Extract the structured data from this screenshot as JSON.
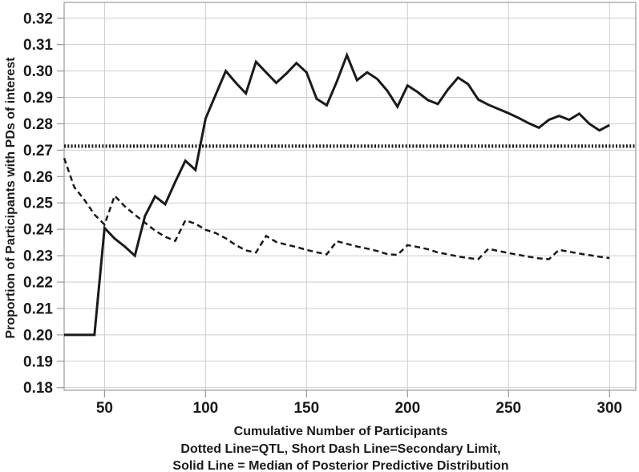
{
  "colors": {
    "line": "#1a1a1a",
    "grid": "#cdcdcd",
    "axis": "#999999",
    "text": "#1a1a1a",
    "background": "#ffffff"
  },
  "chart_data": {
    "type": "line",
    "title": "",
    "xlabel": "Cumulative Number of Participants",
    "ylabel": "Proportion of Participants with PDs of interest",
    "footnotes": [
      "Dotted Line=QTL, Short Dash Line=Secondary Limit,",
      "Solid Line = Median of Posterior Predictive Distribution"
    ],
    "grid": true,
    "legend_position": "none",
    "xlim": [
      30,
      313
    ],
    "ylim": [
      0.179,
      0.326
    ],
    "xticks": [
      50,
      100,
      150,
      200,
      250,
      300
    ],
    "xtick_labels": [
      "50",
      "100",
      "150",
      "200",
      "250",
      "300"
    ],
    "yticks": [
      0.18,
      0.19,
      0.2,
      0.21,
      0.22,
      0.23,
      0.24,
      0.25,
      0.26,
      0.27,
      0.28,
      0.29,
      0.3,
      0.31,
      0.32
    ],
    "ytick_labels": [
      "0.18",
      "0.19",
      "0.20",
      "0.21",
      "0.22",
      "0.23",
      "0.24",
      "0.25",
      "0.26",
      "0.27",
      "0.28",
      "0.29",
      "0.30",
      "0.31",
      "0.32"
    ],
    "series": [
      {
        "name": "QTL",
        "style": "dotted",
        "points": [
          [
            30,
            0.2715
          ],
          [
            313,
            0.2715
          ]
        ]
      },
      {
        "name": "Secondary Limit",
        "style": "short-dash",
        "points": [
          [
            30,
            0.267
          ],
          [
            35,
            0.256
          ],
          [
            40,
            0.2512
          ],
          [
            45,
            0.2456
          ],
          [
            50,
            0.2418
          ],
          [
            55,
            0.2527
          ],
          [
            60,
            0.2487
          ],
          [
            65,
            0.2455
          ],
          [
            70,
            0.2425
          ],
          [
            75,
            0.2395
          ],
          [
            80,
            0.2372
          ],
          [
            85,
            0.2356
          ],
          [
            90,
            0.2434
          ],
          [
            95,
            0.2421
          ],
          [
            100,
            0.2398
          ],
          [
            105,
            0.2386
          ],
          [
            110,
            0.2366
          ],
          [
            115,
            0.234
          ],
          [
            120,
            0.232
          ],
          [
            125,
            0.2312
          ],
          [
            130,
            0.2375
          ],
          [
            135,
            0.2352
          ],
          [
            140,
            0.2342
          ],
          [
            145,
            0.2333
          ],
          [
            150,
            0.2322
          ],
          [
            155,
            0.2313
          ],
          [
            160,
            0.2305
          ],
          [
            165,
            0.2355
          ],
          [
            170,
            0.2345
          ],
          [
            175,
            0.2335
          ],
          [
            180,
            0.2327
          ],
          [
            185,
            0.2318
          ],
          [
            190,
            0.2306
          ],
          [
            195,
            0.2303
          ],
          [
            200,
            0.234
          ],
          [
            205,
            0.2333
          ],
          [
            210,
            0.2325
          ],
          [
            215,
            0.2312
          ],
          [
            220,
            0.2305
          ],
          [
            225,
            0.2297
          ],
          [
            230,
            0.2291
          ],
          [
            235,
            0.2287
          ],
          [
            240,
            0.2326
          ],
          [
            245,
            0.2318
          ],
          [
            250,
            0.231
          ],
          [
            255,
            0.2303
          ],
          [
            260,
            0.2296
          ],
          [
            265,
            0.229
          ],
          [
            270,
            0.2287
          ],
          [
            275,
            0.2322
          ],
          [
            280,
            0.2315
          ],
          [
            285,
            0.2308
          ],
          [
            290,
            0.2302
          ],
          [
            295,
            0.2296
          ],
          [
            300,
            0.2291
          ]
        ]
      },
      {
        "name": "Median of Posterior Predictive Distribution",
        "style": "solid",
        "points": [
          [
            30,
            0.2
          ],
          [
            35,
            0.2
          ],
          [
            40,
            0.2
          ],
          [
            45,
            0.2
          ],
          [
            50,
            0.2405
          ],
          [
            55,
            0.2365
          ],
          [
            60,
            0.2335
          ],
          [
            65,
            0.23
          ],
          [
            70,
            0.245
          ],
          [
            75,
            0.2525
          ],
          [
            80,
            0.2495
          ],
          [
            85,
            0.258
          ],
          [
            90,
            0.266
          ],
          [
            95,
            0.2625
          ],
          [
            100,
            0.282
          ],
          [
            105,
            0.291
          ],
          [
            110,
            0.3
          ],
          [
            115,
            0.2955
          ],
          [
            120,
            0.2915
          ],
          [
            125,
            0.3035
          ],
          [
            130,
            0.2995
          ],
          [
            135,
            0.2955
          ],
          [
            140,
            0.299
          ],
          [
            145,
            0.303
          ],
          [
            150,
            0.2995
          ],
          [
            155,
            0.2895
          ],
          [
            160,
            0.287
          ],
          [
            165,
            0.296
          ],
          [
            170,
            0.306
          ],
          [
            175,
            0.2965
          ],
          [
            180,
            0.2995
          ],
          [
            185,
            0.297
          ],
          [
            190,
            0.2925
          ],
          [
            195,
            0.2865
          ],
          [
            200,
            0.2945
          ],
          [
            205,
            0.292
          ],
          [
            210,
            0.289
          ],
          [
            215,
            0.2875
          ],
          [
            220,
            0.293
          ],
          [
            225,
            0.2975
          ],
          [
            230,
            0.295
          ],
          [
            235,
            0.2892
          ],
          [
            240,
            0.2872
          ],
          [
            245,
            0.2856
          ],
          [
            250,
            0.284
          ],
          [
            255,
            0.2822
          ],
          [
            260,
            0.2802
          ],
          [
            265,
            0.2785
          ],
          [
            270,
            0.2815
          ],
          [
            275,
            0.283
          ],
          [
            280,
            0.2815
          ],
          [
            285,
            0.2838
          ],
          [
            290,
            0.28
          ],
          [
            295,
            0.2775
          ],
          [
            300,
            0.2795
          ]
        ]
      }
    ]
  }
}
